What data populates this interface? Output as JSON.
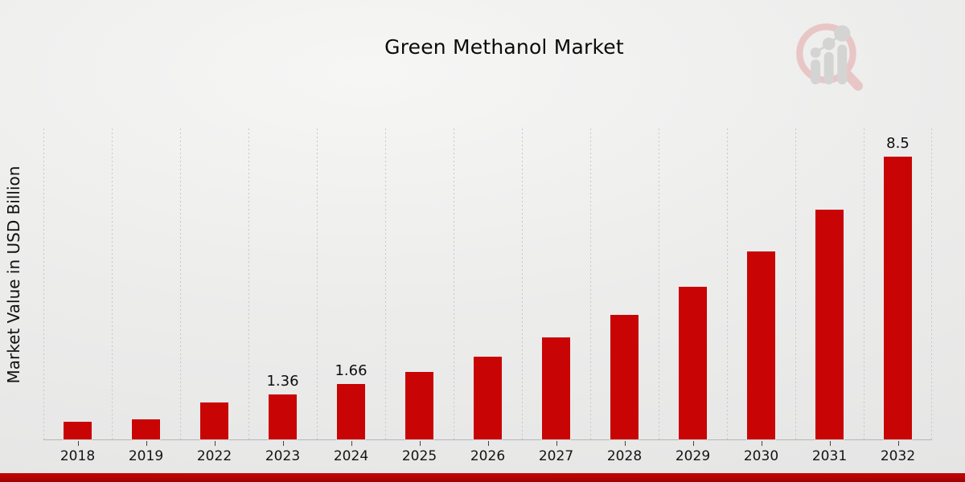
{
  "page": {
    "title": "Green Methanol Market"
  },
  "branding": {
    "logo": "market-research-future-watermark-logo",
    "logo_ring_color": "#e9c6c6",
    "logo_bar_color": "#d4d4d4",
    "accent_red": "#c90404",
    "footer_bar_gradient": [
      "#c20505",
      "#9d0202"
    ]
  },
  "chart_data": {
    "type": "bar",
    "title": "Green Methanol Market",
    "xlabel": "",
    "ylabel": "Market Value in USD Billion",
    "categories": [
      "2018",
      "2019",
      "2022",
      "2023",
      "2024",
      "2025",
      "2026",
      "2027",
      "2028",
      "2029",
      "2030",
      "2031",
      "2032"
    ],
    "values": [
      0.52,
      0.61,
      1.11,
      1.36,
      1.66,
      2.03,
      2.49,
      3.06,
      3.75,
      4.6,
      5.64,
      6.91,
      8.5
    ],
    "data_labels": {
      "2023": "1.36",
      "2024": "1.66",
      "2032": "8.5"
    },
    "ylim": [
      0,
      9.37
    ],
    "bar_color": "#c90404",
    "grid": "vertical-dashed",
    "legend_position": "none"
  }
}
